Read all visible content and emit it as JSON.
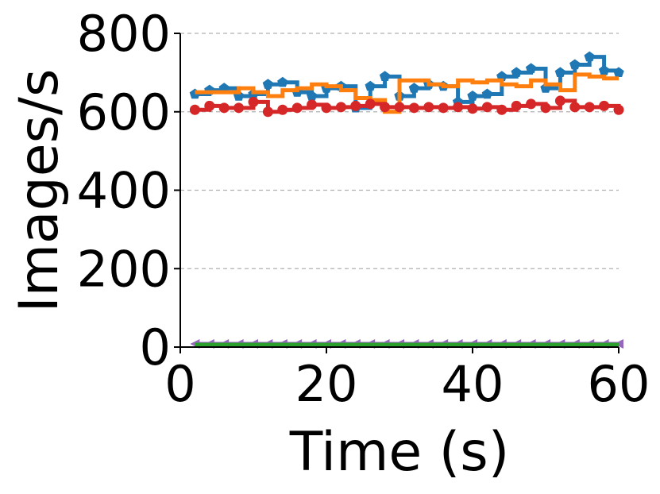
{
  "chart_data": {
    "type": "line",
    "step": true,
    "xlabel": "Time (s)",
    "ylabel": "Images/s",
    "xlim": [
      0,
      60
    ],
    "ylim": [
      0,
      800
    ],
    "xticks": [
      "0",
      "20",
      "40",
      "60"
    ],
    "yticks": [
      "0",
      "200",
      "400",
      "600",
      "800"
    ],
    "grid": "y-dashed",
    "series": [
      {
        "color": "#1f77b4",
        "marker": "pentagon",
        "x": [
          2,
          4,
          6,
          8,
          10,
          12,
          14,
          16,
          18,
          20,
          22,
          24,
          26,
          28,
          30,
          32,
          34,
          36,
          38,
          40,
          42,
          44,
          46,
          48,
          50,
          52,
          54,
          56,
          58,
          60
        ],
        "values": [
          645,
          655,
          660,
          640,
          645,
          670,
          675,
          650,
          640,
          660,
          665,
          610,
          665,
          690,
          640,
          660,
          670,
          665,
          625,
          640,
          645,
          690,
          700,
          710,
          660,
          700,
          720,
          740,
          705,
          700
        ]
      },
      {
        "color": "#ff7f0e",
        "marker": "none",
        "x": [
          2,
          4,
          6,
          8,
          10,
          12,
          14,
          16,
          18,
          20,
          22,
          24,
          26,
          28,
          30,
          32,
          34,
          36,
          38,
          40,
          42,
          44,
          46,
          48,
          50,
          52,
          54,
          56,
          58,
          60
        ],
        "values": [
          650,
          650,
          650,
          660,
          650,
          640,
          655,
          660,
          670,
          665,
          655,
          635,
          630,
          600,
          680,
          680,
          670,
          665,
          680,
          675,
          680,
          670,
          665,
          680,
          670,
          655,
          695,
          690,
          685,
          685
        ]
      },
      {
        "color": "#d62728",
        "marker": "circle",
        "x": [
          2,
          4,
          6,
          8,
          10,
          12,
          14,
          16,
          18,
          20,
          22,
          24,
          26,
          28,
          30,
          32,
          34,
          36,
          38,
          40,
          42,
          44,
          46,
          48,
          50,
          52,
          54,
          56,
          58,
          60
        ],
        "values": [
          605,
          615,
          610,
          610,
          625,
          600,
          605,
          610,
          618,
          610,
          612,
          615,
          620,
          612,
          612,
          610,
          612,
          610,
          612,
          608,
          612,
          605,
          615,
          620,
          610,
          628,
          612,
          612,
          615,
          605
        ]
      },
      {
        "color": "#9467bd",
        "marker": "triangle-left",
        "x": [
          2,
          4,
          6,
          8,
          10,
          12,
          14,
          16,
          18,
          20,
          22,
          24,
          26,
          28,
          30,
          32,
          34,
          36,
          38,
          40,
          42,
          44,
          46,
          48,
          50,
          52,
          54,
          56,
          58,
          60
        ],
        "values": [
          8,
          8,
          8,
          8,
          8,
          8,
          8,
          8,
          8,
          8,
          8,
          8,
          8,
          8,
          8,
          8,
          8,
          8,
          8,
          8,
          8,
          8,
          8,
          8,
          8,
          8,
          8,
          8,
          8,
          8
        ]
      },
      {
        "color": "#2ca02c",
        "marker": "none",
        "x": [
          2,
          4,
          6,
          8,
          10,
          12,
          14,
          16,
          18,
          20,
          22,
          24,
          26,
          28,
          30,
          32,
          34,
          36,
          38,
          40,
          42,
          44,
          46,
          48,
          50,
          52,
          54,
          56,
          58,
          60
        ],
        "values": [
          6,
          6,
          6,
          6,
          6,
          6,
          6,
          6,
          6,
          6,
          6,
          6,
          6,
          6,
          6,
          6,
          6,
          6,
          6,
          6,
          6,
          6,
          6,
          6,
          6,
          6,
          6,
          6,
          6,
          6
        ]
      }
    ]
  }
}
